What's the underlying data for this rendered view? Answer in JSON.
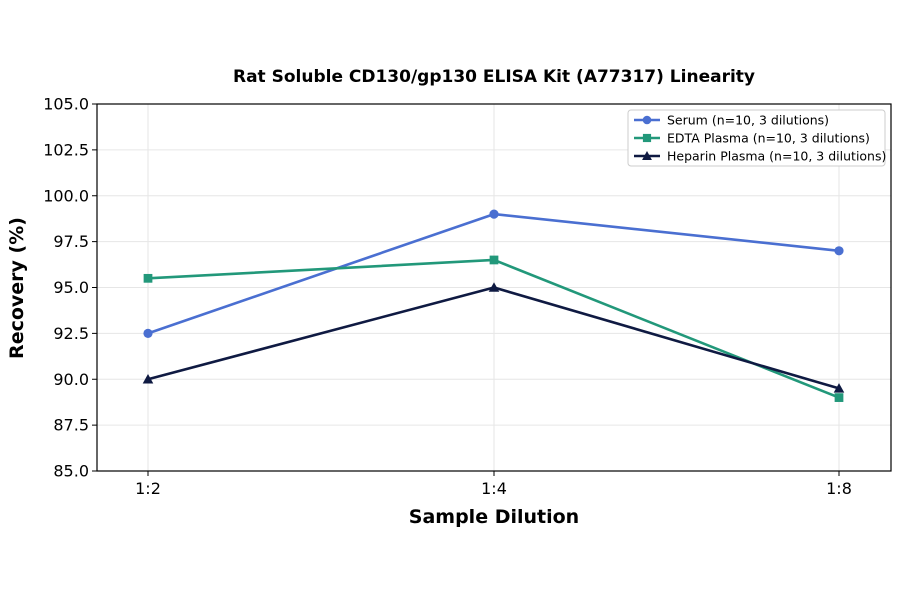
{
  "chart_data": {
    "type": "line",
    "title": "Rat Soluble CD130/gp130 ELISA Kit (A77317) Linearity",
    "xlabel": "Sample Dilution",
    "ylabel": "Recovery (%)",
    "categories": [
      "1:2",
      "1:4",
      "1:8"
    ],
    "ylim": [
      85.0,
      105.0
    ],
    "yticks": [
      "85.0",
      "87.5",
      "90.0",
      "92.5",
      "95.0",
      "97.5",
      "100.0",
      "102.5",
      "105.0"
    ],
    "grid": true,
    "legend_position": "top-right",
    "series": [
      {
        "name": "Serum (n=10, 3 dilutions)",
        "values": [
          92.5,
          99.0,
          97.0
        ],
        "color": "#4a6fd1",
        "marker": "circle"
      },
      {
        "name": "EDTA Plasma (n=10, 3 dilutions)",
        "values": [
          95.5,
          96.5,
          89.0
        ],
        "color": "#22987a",
        "marker": "square"
      },
      {
        "name": "Heparin Plasma (n=10, 3 dilutions)",
        "values": [
          90.0,
          95.0,
          89.5
        ],
        "color": "#0f1a42",
        "marker": "triangle"
      }
    ]
  }
}
